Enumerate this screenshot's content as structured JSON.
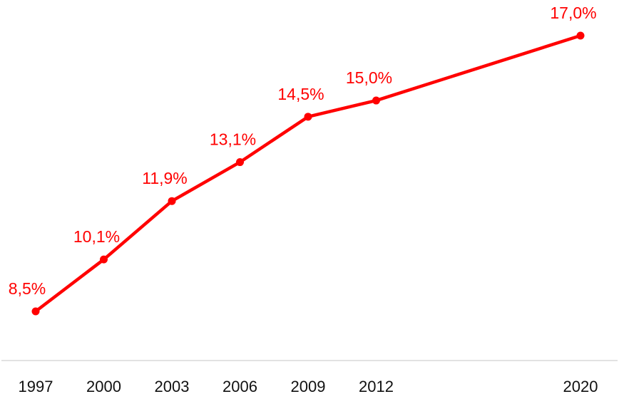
{
  "chart_data": {
    "type": "line",
    "title": "",
    "xlabel": "",
    "ylabel": "",
    "categories": [
      "1997",
      "2000",
      "2003",
      "2006",
      "2009",
      "2012",
      "2020"
    ],
    "series": [
      {
        "name": "",
        "values": [
          8.5,
          10.1,
          11.9,
          13.1,
          14.5,
          15.0,
          17.0
        ],
        "color": "#ff0000"
      }
    ],
    "data_labels": [
      "8,5%",
      "10,1%",
      "11,9%",
      "13,1%",
      "14,5%",
      "15,0%",
      "17,0%"
    ],
    "grid": false,
    "legend": "none"
  }
}
